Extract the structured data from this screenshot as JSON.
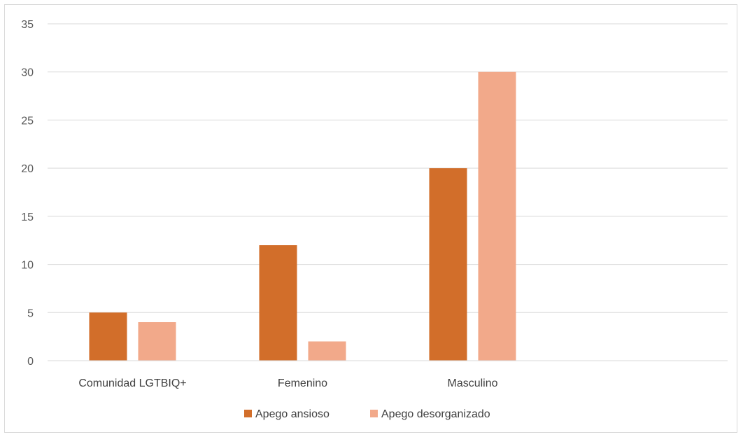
{
  "chart_data": {
    "type": "bar",
    "categories": [
      "Comunidad LGTBIQ+",
      "Femenino",
      "Masculino",
      ""
    ],
    "series": [
      {
        "name": "Apego ansioso",
        "values": [
          5,
          12,
          20,
          null
        ],
        "color": "#D26E2A"
      },
      {
        "name": "Apego desorganizado",
        "values": [
          4,
          2,
          30,
          null
        ],
        "color": "#F2A98A"
      }
    ],
    "ylim": [
      0,
      35
    ],
    "yticks": [
      0,
      5,
      10,
      15,
      20,
      25,
      30,
      35
    ],
    "grid": true,
    "legend_position": "bottom",
    "title": "",
    "xlabel": "",
    "ylabel": ""
  }
}
